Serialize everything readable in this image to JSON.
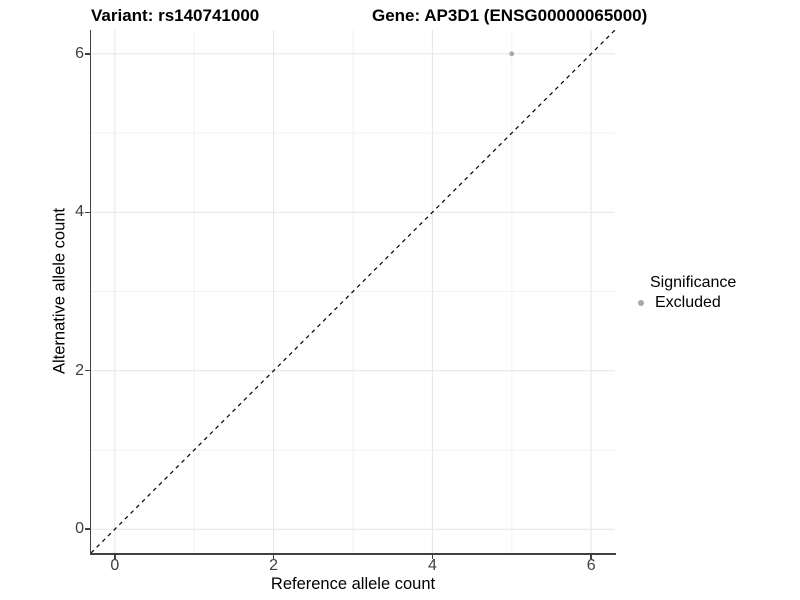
{
  "titles": {
    "variant": "Variant: rs140741000",
    "gene": "Gene: AP3D1 (ENSG00000065000)"
  },
  "axes": {
    "x_label": "Reference allele count",
    "y_label": "Alternative allele count",
    "x_tick_labels": [
      "0",
      "2",
      "4",
      "6"
    ],
    "y_tick_labels": [
      "0",
      "2",
      "4",
      "6"
    ]
  },
  "legend": {
    "title": "Significance",
    "items": [
      {
        "label": "Excluded",
        "color": "#a8a8a8"
      }
    ]
  },
  "colors": {
    "background": "#ffffff",
    "grid_major": "#e6e6e6",
    "grid_minor": "#f2f2f2",
    "axis_line": "#404040",
    "tick_text": "#404040",
    "title_text": "#000000",
    "point": "#a8a8a8",
    "reference_line": "#000000"
  },
  "chart_data": {
    "type": "scatter",
    "title": "Variant: rs140741000 / Gene: AP3D1 (ENSG00000065000)",
    "xlabel": "Reference allele count",
    "ylabel": "Alternative allele count",
    "xlim": [
      -0.3,
      6.3
    ],
    "ylim": [
      -0.3,
      6.3
    ],
    "x_ticks": [
      0,
      2,
      4,
      6
    ],
    "y_ticks": [
      0,
      2,
      4,
      6
    ],
    "x_minor_gridlines": [
      1,
      3,
      5
    ],
    "y_minor_gridlines": [
      1,
      3,
      5
    ],
    "grid": "major and minor, light grey on white",
    "legend_position": "right",
    "series": [
      {
        "name": "Excluded",
        "color": "#a8a8a8",
        "points": [
          {
            "x": 5,
            "y": 6
          }
        ]
      }
    ],
    "reference_line": {
      "type": "identity (y = x)",
      "style": "dashed",
      "color": "#000000",
      "x1": -0.3,
      "y1": -0.3,
      "x2": 6.3,
      "y2": 6.3
    }
  }
}
